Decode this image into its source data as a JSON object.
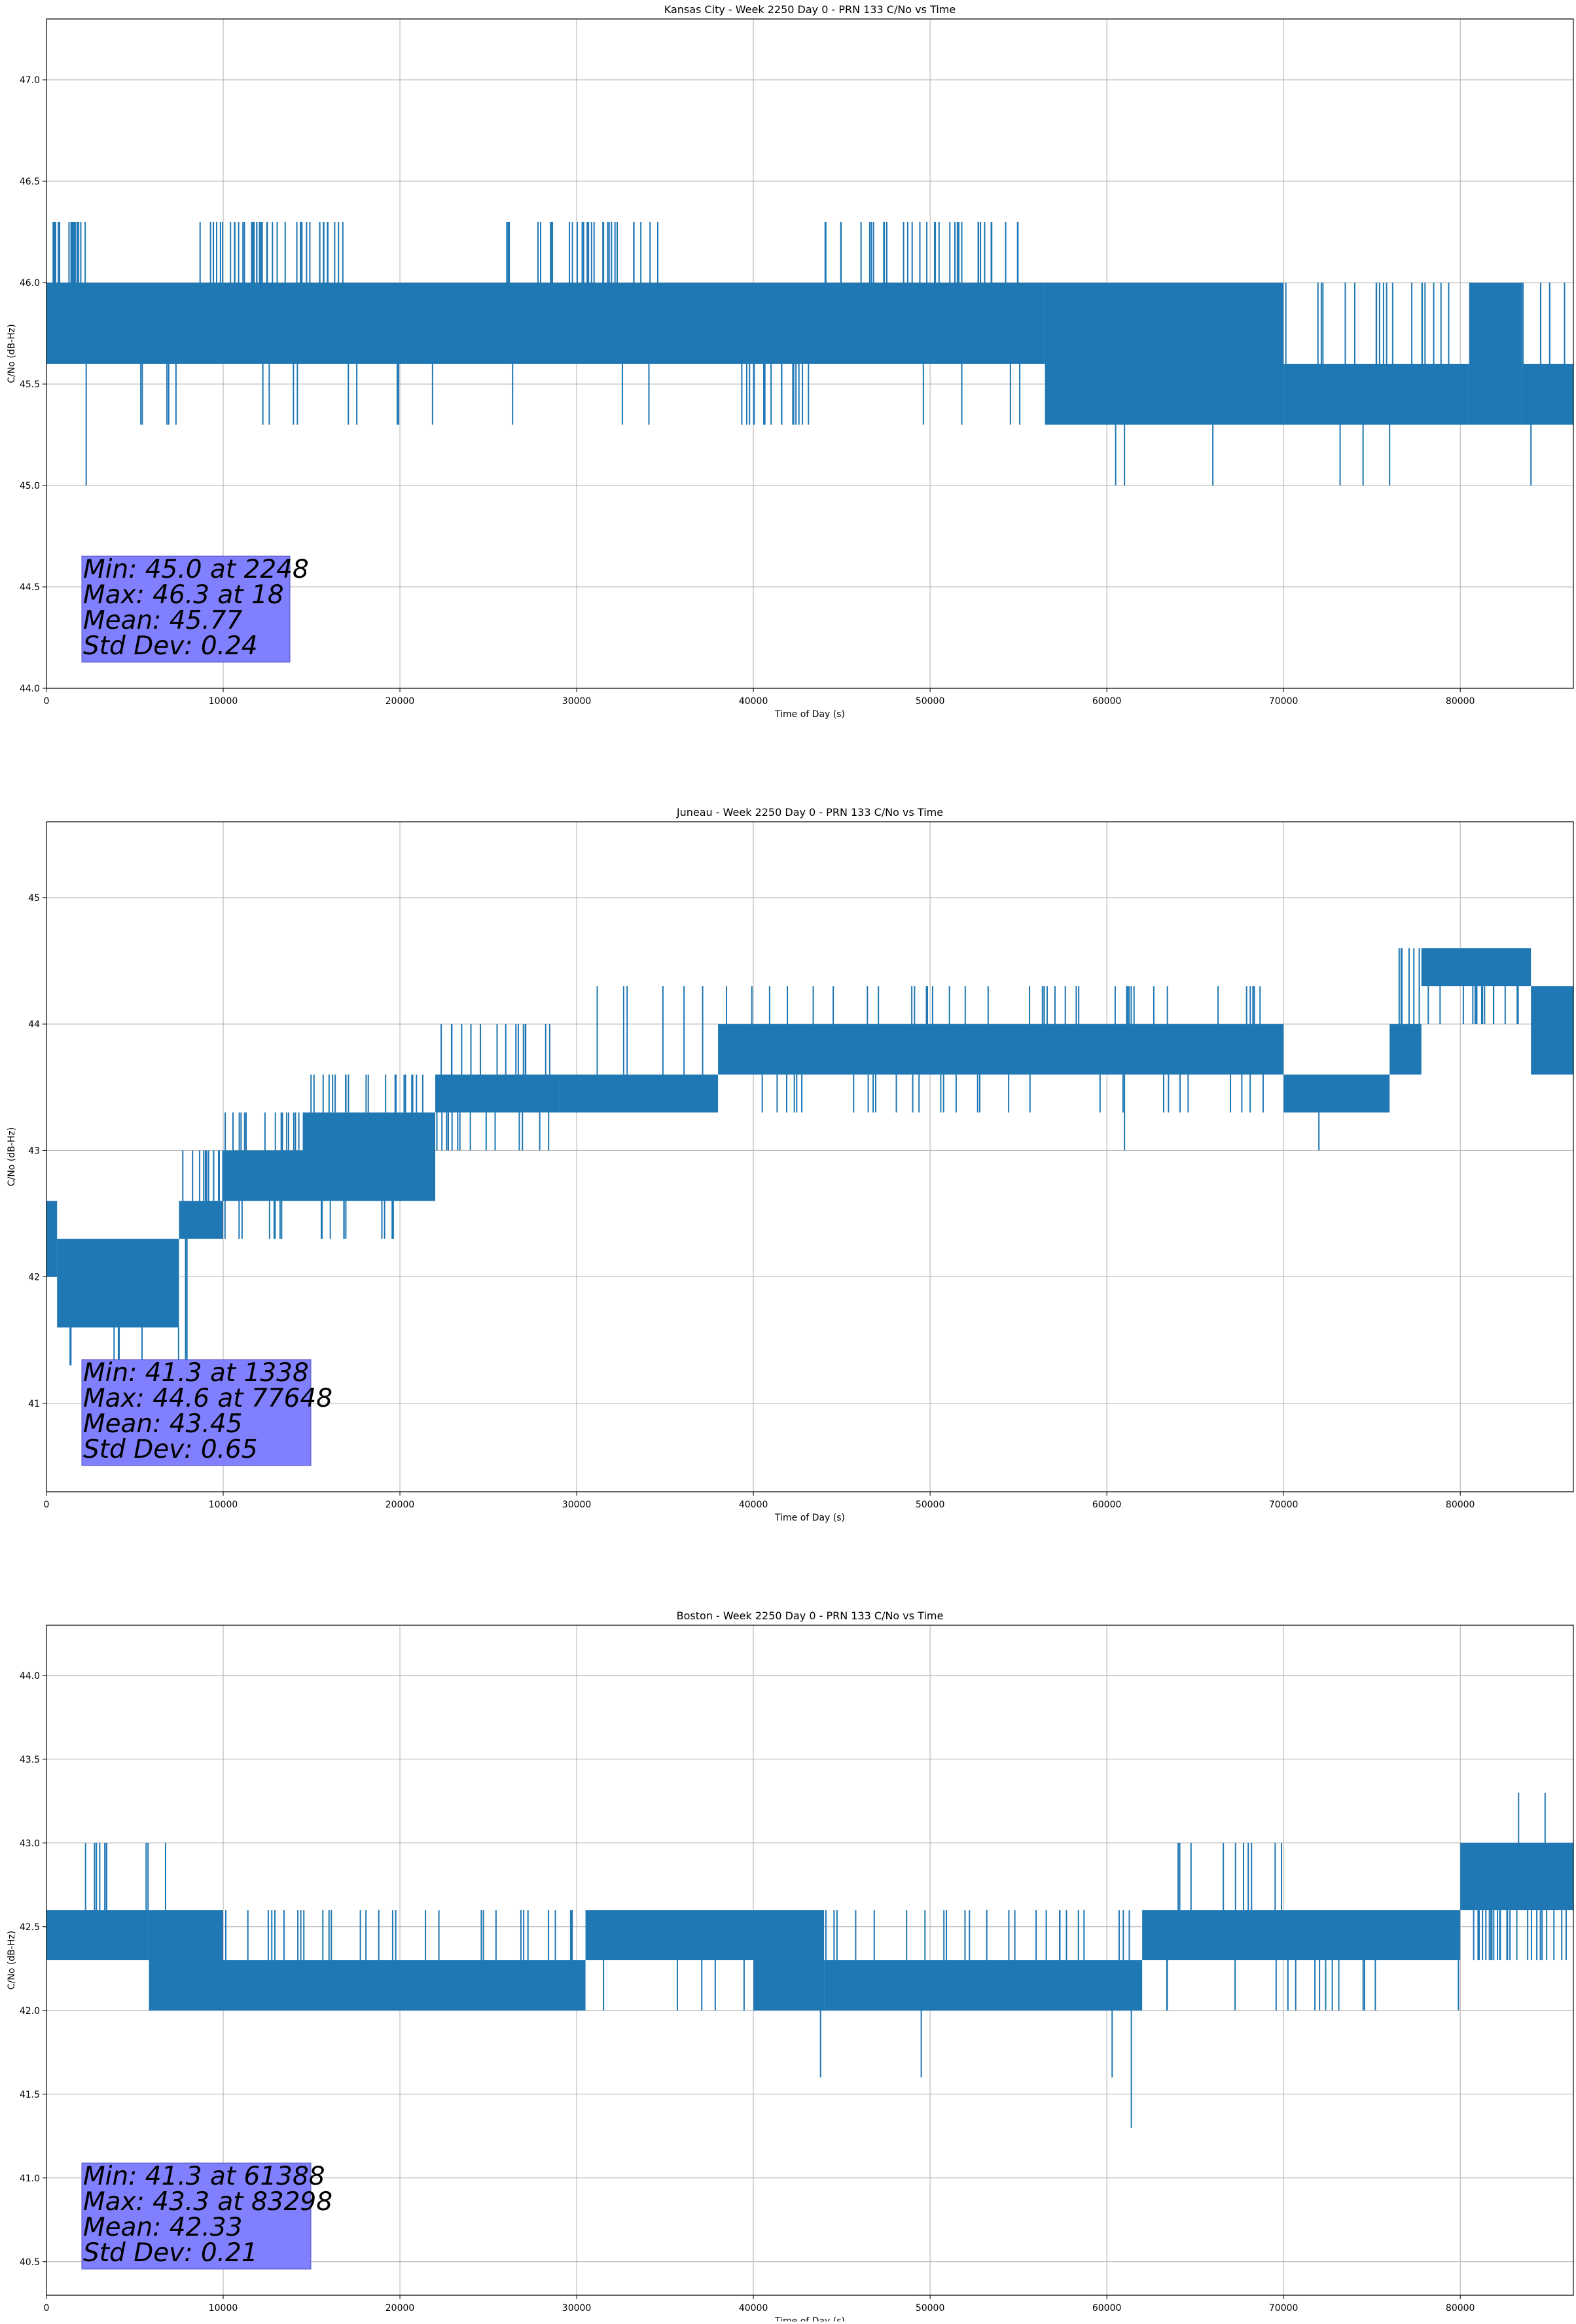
{
  "colors": {
    "series": "#1f77b4",
    "grid": "#b0b0b0",
    "stats_box": "#8080ff"
  },
  "chart_data": [
    {
      "type": "line",
      "title": "Kansas City - Week 2250 Day 0 - PRN 133 C/No vs Time",
      "xlabel": "Time of Day (s)",
      "ylabel": "C/No (dB-Hz)",
      "xlim": [
        0,
        86400
      ],
      "ylim": [
        44.0,
        47.3
      ],
      "xticks": [
        0,
        10000,
        20000,
        30000,
        40000,
        50000,
        60000,
        70000,
        80000
      ],
      "yticks": [
        44.0,
        44.5,
        45.0,
        45.5,
        46.0,
        46.5,
        47.0
      ],
      "ytick_decimals": 1,
      "grid": true,
      "segments": [
        {
          "x": [
            0,
            56500
          ],
          "low": 45.6,
          "high": 46.0
        },
        {
          "x": [
            56500,
            70000
          ],
          "low": 45.3,
          "high": 46.0
        },
        {
          "x": [
            70000,
            80500
          ],
          "low": 45.3,
          "high": 45.6
        },
        {
          "x": [
            80500,
            83500
          ],
          "low": 45.3,
          "high": 46.0
        },
        {
          "x": [
            83500,
            86400
          ],
          "low": 45.3,
          "high": 45.6
        }
      ],
      "spikes_up": [
        {
          "x": [
            0,
            2200
          ],
          "to": 46.3,
          "n": 18
        },
        {
          "x": [
            8500,
            17000
          ],
          "to": 46.3,
          "n": 45
        },
        {
          "x": [
            26000,
            35000
          ],
          "to": 46.3,
          "n": 30
        },
        {
          "x": [
            44000,
            55000
          ],
          "to": 46.3,
          "n": 35
        },
        {
          "x": [
            70000,
            86400
          ],
          "to": 46.0,
          "n": 30
        }
      ],
      "spikes_down": [
        {
          "x": [
            0,
            56000
          ],
          "to": 45.3,
          "n": 25
        },
        {
          "x": [
            39500,
            43500
          ],
          "to": 45.3,
          "n": 12
        },
        {
          "x": [
            56000,
            72000
          ],
          "to": 45.3,
          "n": 30
        }
      ],
      "points": [
        [
          2248,
          45.0
        ],
        [
          60500,
          45.0
        ],
        [
          61000,
          45.0
        ],
        [
          66000,
          45.0
        ],
        [
          73200,
          45.0
        ],
        [
          74500,
          45.0
        ],
        [
          76000,
          45.0
        ],
        [
          84000,
          45.0
        ]
      ],
      "stats": [
        "Min: 45.0 at 2248",
        "Max: 46.3 at 18",
        "Mean: 45.77",
        "Std Dev: 0.24"
      ]
    },
    {
      "type": "line",
      "title": "Juneau - Week 2250 Day 0 - PRN 133 C/No vs Time",
      "xlabel": "Time of Day (s)",
      "ylabel": "C/No (dB-Hz)",
      "xlim": [
        0,
        86400
      ],
      "ylim": [
        40.3,
        45.6
      ],
      "xticks": [
        0,
        10000,
        20000,
        30000,
        40000,
        50000,
        60000,
        70000,
        80000
      ],
      "yticks": [
        41,
        42,
        43,
        44,
        45
      ],
      "ytick_decimals": 0,
      "grid": true,
      "segments": [
        {
          "x": [
            0,
            600
          ],
          "low": 42.0,
          "high": 42.6
        },
        {
          "x": [
            600,
            2500
          ],
          "low": 41.6,
          "high": 42.3
        },
        {
          "x": [
            2500,
            7500
          ],
          "low": 41.6,
          "high": 42.3
        },
        {
          "x": [
            7500,
            10000
          ],
          "low": 42.3,
          "high": 42.6
        },
        {
          "x": [
            10000,
            14500
          ],
          "low": 42.6,
          "high": 43.0
        },
        {
          "x": [
            14500,
            22000
          ],
          "low": 42.6,
          "high": 43.3
        },
        {
          "x": [
            22000,
            29000
          ],
          "low": 43.3,
          "high": 43.6
        },
        {
          "x": [
            29000,
            38000
          ],
          "low": 43.3,
          "high": 43.6
        },
        {
          "x": [
            38000,
            70000
          ],
          "low": 43.6,
          "high": 44.0
        },
        {
          "x": [
            70000,
            76000
          ],
          "low": 43.3,
          "high": 43.6
        },
        {
          "x": [
            76000,
            77800
          ],
          "low": 43.6,
          "high": 44.0
        },
        {
          "x": [
            77800,
            84000
          ],
          "low": 44.3,
          "high": 44.6
        },
        {
          "x": [
            84000,
            86400
          ],
          "low": 43.6,
          "high": 44.3
        }
      ],
      "spikes_up": [
        {
          "x": [
            7500,
            10000
          ],
          "to": 43.0,
          "n": 12
        },
        {
          "x": [
            10000,
            14500
          ],
          "to": 43.3,
          "n": 15
        },
        {
          "x": [
            14500,
            22000
          ],
          "to": 43.6,
          "n": 20
        },
        {
          "x": [
            22000,
            30000
          ],
          "to": 44.0,
          "n": 15
        },
        {
          "x": [
            31000,
            69000
          ],
          "to": 44.3,
          "n": 45
        },
        {
          "x": [
            76500,
            77800
          ],
          "to": 44.6,
          "n": 6
        }
      ],
      "spikes_down": [
        {
          "x": [
            1000,
            8000
          ],
          "to": 41.3,
          "n": 8
        },
        {
          "x": [
            9000,
            14000
          ],
          "to": 42.3,
          "n": 10
        },
        {
          "x": [
            15000,
            22000
          ],
          "to": 42.3,
          "n": 10
        },
        {
          "x": [
            22000,
            29000
          ],
          "to": 43.0,
          "n": 15
        },
        {
          "x": [
            40000,
            70000
          ],
          "to": 43.3,
          "n": 30
        },
        {
          "x": [
            78000,
            84000
          ],
          "to": 44.0,
          "n": 15
        }
      ],
      "points": [
        [
          1338,
          41.3
        ],
        [
          61000,
          43.0
        ],
        [
          72000,
          43.0
        ]
      ],
      "stats": [
        "Min: 41.3 at 1338",
        "Max: 44.6 at 77648",
        "Mean: 43.45",
        "Std Dev: 0.65"
      ]
    },
    {
      "type": "line",
      "title": "Boston - Week 2250 Day 0 - PRN 133 C/No vs Time",
      "xlabel": "Time of Day (s)",
      "ylabel": "C/No (dB-Hz)",
      "xlim": [
        0,
        86400
      ],
      "ylim": [
        40.3,
        44.3
      ],
      "xticks": [
        0,
        10000,
        20000,
        30000,
        40000,
        50000,
        60000,
        70000,
        80000
      ],
      "yticks": [
        40.5,
        41.0,
        41.5,
        42.0,
        42.5,
        43.0,
        43.5,
        44.0
      ],
      "ytick_decimals": 1,
      "grid": true,
      "segments": [
        {
          "x": [
            0,
            5800
          ],
          "low": 42.3,
          "high": 42.6
        },
        {
          "x": [
            5800,
            10000
          ],
          "low": 42.0,
          "high": 42.6
        },
        {
          "x": [
            10000,
            30500
          ],
          "low": 42.0,
          "high": 42.3
        },
        {
          "x": [
            30500,
            40000
          ],
          "low": 42.3,
          "high": 42.6
        },
        {
          "x": [
            40000,
            44000
          ],
          "low": 42.0,
          "high": 42.6
        },
        {
          "x": [
            44000,
            62000
          ],
          "low": 42.0,
          "high": 42.3
        },
        {
          "x": [
            62000,
            80000
          ],
          "low": 42.3,
          "high": 42.6
        },
        {
          "x": [
            80000,
            86400
          ],
          "low": 42.6,
          "high": 43.0
        }
      ],
      "spikes_up": [
        {
          "x": [
            0,
            7000
          ],
          "to": 43.0,
          "n": 10
        },
        {
          "x": [
            10000,
            30500
          ],
          "to": 42.6,
          "n": 30
        },
        {
          "x": [
            44000,
            62000
          ],
          "to": 42.6,
          "n": 25
        },
        {
          "x": [
            64000,
            71000
          ],
          "to": 43.0,
          "n": 10
        },
        {
          "x": [
            80000,
            86400
          ],
          "to": 43.0,
          "n": 10
        }
      ],
      "spikes_down": [
        {
          "x": [
            5800,
            30000
          ],
          "to": 42.0,
          "n": 15
        },
        {
          "x": [
            30500,
            80000
          ],
          "to": 42.0,
          "n": 30
        },
        {
          "x": [
            80000,
            86400
          ],
          "to": 42.3,
          "n": 25
        }
      ],
      "points": [
        [
          43800,
          41.6
        ],
        [
          49500,
          41.6
        ],
        [
          60300,
          41.6
        ],
        [
          61388,
          41.3
        ],
        [
          83298,
          43.3
        ],
        [
          84800,
          43.3
        ]
      ],
      "stats": [
        "Min: 41.3 at 61388",
        "Max: 43.3 at 83298",
        "Mean: 42.33",
        "Std Dev: 0.21"
      ]
    }
  ]
}
